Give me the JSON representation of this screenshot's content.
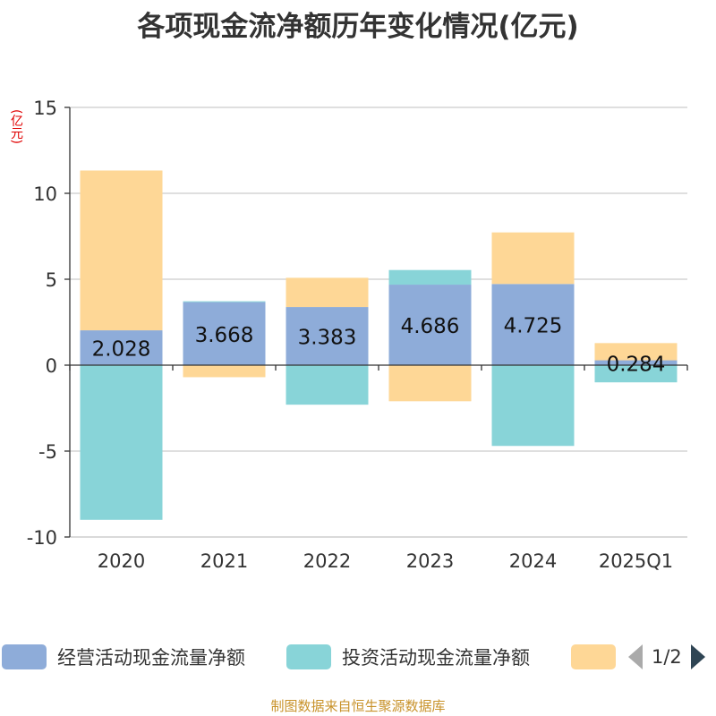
{
  "title": "各项现金流净额历年变化情况(亿元)",
  "unit_label": "(亿元)",
  "source": "制图数据来自恒生聚源数据库",
  "legend": {
    "items": [
      {
        "label": "经营活动现金流量净额",
        "color": "#8eacd9"
      },
      {
        "label": "投资活动现金流量净额",
        "color": "#88d4d8"
      },
      {
        "label": "",
        "color": "#fed796"
      }
    ],
    "page_text": "1/2"
  },
  "chart_data": {
    "type": "bar",
    "stacked": true,
    "categories": [
      "2020",
      "2021",
      "2022",
      "2023",
      "2024",
      "2025Q1"
    ],
    "series": [
      {
        "name": "经营活动现金流量净额",
        "color": "#8eacd9",
        "values": [
          2.028,
          3.668,
          3.383,
          4.686,
          4.725,
          0.284
        ]
      },
      {
        "name": "投资活动现金流量净额",
        "color": "#88d4d8",
        "values": [
          -9.0,
          0.05,
          -2.3,
          0.85,
          -4.7,
          -1.0
        ]
      },
      {
        "color": "#fed796",
        "values": [
          9.3,
          -0.7,
          1.7,
          -2.1,
          3.0,
          1.0
        ]
      }
    ],
    "data_labels": [
      "2.028",
      "3.668",
      "3.383",
      "4.686",
      "4.725",
      "0.284"
    ],
    "yticks": [
      15,
      10,
      5,
      0,
      -5,
      -10
    ],
    "ylim": [
      -10,
      15
    ],
    "grid": true
  }
}
